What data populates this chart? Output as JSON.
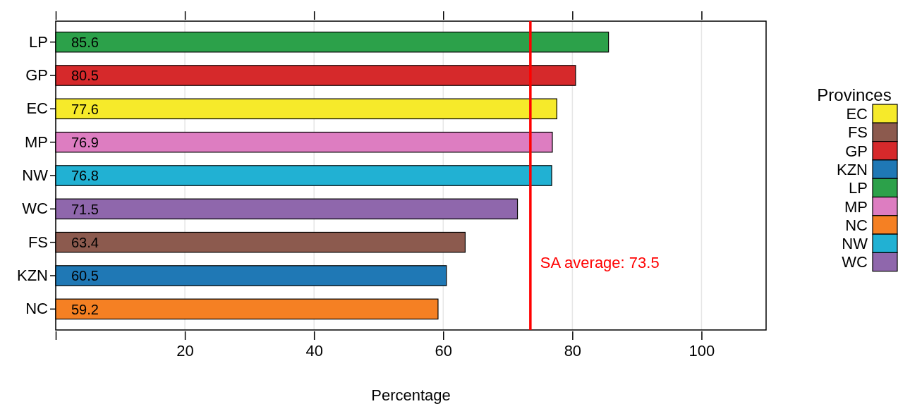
{
  "chart_data": {
    "type": "bar",
    "orientation": "horizontal",
    "stacked": true,
    "xlabel": "Percentage",
    "legend_title": "Provinces",
    "legend": "right",
    "grid": "x",
    "data_labels": true,
    "categories": [
      "LP",
      "GP",
      "EC",
      "MP",
      "NW",
      "WC",
      "FS",
      "KZN",
      "NC"
    ],
    "xlim": [
      0,
      110
    ],
    "xticks": [
      {
        "value": 0,
        "label": null
      },
      20,
      40,
      60,
      80,
      100
    ],
    "series": [
      {
        "name": "EC",
        "color": "#f6ea2a",
        "values": [
          null,
          null,
          77.6,
          null,
          null,
          null,
          null,
          null,
          null
        ]
      },
      {
        "name": "FS",
        "color": "#8c5a4e",
        "values": [
          null,
          null,
          null,
          null,
          null,
          null,
          63.4,
          null,
          null
        ]
      },
      {
        "name": "GP",
        "color": "#d6292b",
        "values": [
          null,
          80.5,
          null,
          null,
          null,
          null,
          null,
          null,
          null
        ]
      },
      {
        "name": "KZN",
        "color": "#1f78b5",
        "values": [
          null,
          null,
          null,
          null,
          null,
          null,
          null,
          60.5,
          null
        ]
      },
      {
        "name": "LP",
        "color": "#2ca14a",
        "values": [
          85.6,
          null,
          null,
          null,
          null,
          null,
          null,
          null,
          null
        ]
      },
      {
        "name": "MP",
        "color": "#dd7dc1",
        "values": [
          null,
          null,
          null,
          76.9,
          null,
          null,
          null,
          null,
          null
        ]
      },
      {
        "name": "NC",
        "color": "#f58023",
        "values": [
          null,
          null,
          null,
          null,
          null,
          null,
          null,
          null,
          59.2
        ]
      },
      {
        "name": "NW",
        "color": "#21b1d3",
        "values": [
          null,
          null,
          null,
          null,
          76.8,
          null,
          null,
          null,
          null
        ]
      },
      {
        "name": "WC",
        "color": "#8f67ac",
        "values": [
          null,
          null,
          null,
          null,
          null,
          71.5,
          null,
          null,
          null
        ]
      }
    ],
    "ref_lines": [
      {
        "axis": "x",
        "value": 73.5,
        "label": "SA average: 73.5",
        "color": "#ff0000"
      }
    ]
  }
}
